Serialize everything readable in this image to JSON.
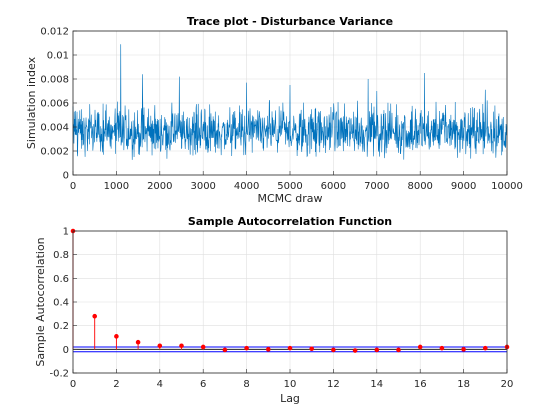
{
  "chart_data": [
    {
      "type": "line",
      "title": "Trace plot - Disturbance Variance",
      "xlabel": "MCMC draw",
      "ylabel": "Simulation index",
      "xlim": [
        0,
        10000
      ],
      "ylim": [
        0,
        0.012
      ],
      "xticks": [
        0,
        1000,
        2000,
        3000,
        4000,
        5000,
        6000,
        7000,
        8000,
        9000,
        10000
      ],
      "xtick_labels": [
        "0",
        "1000",
        "2000",
        "3000",
        "4000",
        "5000",
        "6000",
        "7000",
        "8000",
        "9000",
        "10000"
      ],
      "yticks": [
        0,
        0.002,
        0.004,
        0.006,
        0.008,
        0.01,
        0.012
      ],
      "ytick_labels": [
        "0",
        "0.002",
        "0.004",
        "0.006",
        "0.008",
        "0.01",
        "0.012"
      ],
      "grid": true,
      "series": [
        {
          "color": "#0072BD",
          "typical_mean": 0.0035,
          "typical_range": [
            0.0022,
            0.005
          ],
          "spikes": [
            {
              "x": 1100,
              "y": 0.0109
            },
            {
              "x": 1600,
              "y": 0.0084
            },
            {
              "x": 2450,
              "y": 0.0082
            },
            {
              "x": 4000,
              "y": 0.0077
            },
            {
              "x": 5000,
              "y": 0.0075
            },
            {
              "x": 6800,
              "y": 0.008
            },
            {
              "x": 7000,
              "y": 0.007
            },
            {
              "x": 8100,
              "y": 0.0085
            },
            {
              "x": 9500,
              "y": 0.0071
            }
          ]
        }
      ]
    },
    {
      "type": "stem",
      "title": "Sample Autocorrelation Function",
      "xlabel": "Lag",
      "ylabel": "Sample Autocorrelation",
      "xlim": [
        0,
        20
      ],
      "ylim": [
        -0.2,
        1
      ],
      "xticks": [
        0,
        2,
        4,
        6,
        8,
        10,
        12,
        14,
        16,
        18,
        20
      ],
      "xtick_labels": [
        "0",
        "2",
        "4",
        "6",
        "8",
        "10",
        "12",
        "14",
        "16",
        "18",
        "20"
      ],
      "yticks": [
        -0.2,
        0,
        0.2,
        0.4,
        0.6,
        0.8,
        1
      ],
      "ytick_labels": [
        "-0.2",
        "0",
        "0.2",
        "0.4",
        "0.6",
        "0.8",
        "1"
      ],
      "grid": true,
      "x": [
        0,
        1,
        2,
        3,
        4,
        5,
        6,
        7,
        8,
        9,
        10,
        11,
        12,
        13,
        14,
        15,
        16,
        17,
        18,
        19,
        20
      ],
      "values": [
        1.0,
        0.28,
        0.11,
        0.06,
        0.03,
        0.03,
        0.02,
        -0.005,
        0.01,
        0.0,
        0.01,
        0.005,
        -0.005,
        -0.01,
        -0.005,
        -0.005,
        0.02,
        0.01,
        0.0,
        0.01,
        0.02
      ],
      "stem_color": "#FF0000",
      "confidence_bounds": [
        0.02,
        -0.02
      ],
      "bound_color": "#0000FF"
    }
  ]
}
